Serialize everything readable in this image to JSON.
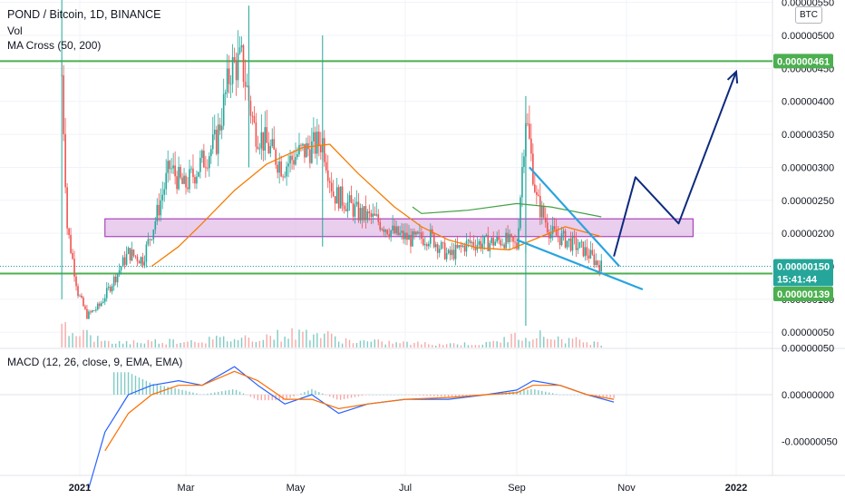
{
  "legend": {
    "symbol": "POND / Bitcoin, 1D, BINANCE",
    "vol": "Vol",
    "ma": "MA Cross (50, 200)",
    "macd": "MACD (12, 26, close, 9, EMA, EMA)"
  },
  "currency": "BTC",
  "price_axis": {
    "ticks": [
      "0.00000550",
      "0.00000500",
      "0.00000450",
      "0.00000400",
      "0.00000350",
      "0.00000300",
      "0.00000250",
      "0.00000200",
      "0.00000150",
      "0.00000100",
      "0.00000050"
    ],
    "tick_values": [
      550,
      500,
      450,
      400,
      350,
      300,
      250,
      200,
      150,
      100,
      50
    ]
  },
  "macd_axis": {
    "ticks": [
      "0.00000050",
      "0.00000000",
      "-0.00000050"
    ],
    "tick_values": [
      50,
      0,
      -50
    ]
  },
  "time_axis": {
    "labels": [
      "2021",
      "Mar",
      "May",
      "Jul",
      "Sep",
      "Nov",
      "2022"
    ],
    "bold": [
      true,
      false,
      false,
      false,
      false,
      false,
      true
    ]
  },
  "tags": {
    "resistance": "0.00000461",
    "last_price": "0.00000150",
    "countdown": "15:41:44",
    "support": "0.00000139"
  },
  "colors": {
    "up": "#26a69a",
    "down": "#ef5350",
    "level": "#4caf50",
    "ma50": "#f57c00",
    "ma200": "#43a047",
    "macd": "#2962ff",
    "signal": "#ff6d00",
    "wedge": "#29a3e0",
    "projection": "#0d2a7e",
    "zone_fill": "#e1bee7",
    "zone_border": "#9c27b0",
    "last": "#26a69a"
  },
  "chart_data": {
    "type": "line",
    "title": "POND / Bitcoin, 1D, BINANCE",
    "unit": "BTC (×1e-8)",
    "x_label_dates": [
      "2021",
      "Mar",
      "May",
      "Jul",
      "Sep",
      "Nov",
      "2022"
    ],
    "price": {
      "ylim": [
        0,
        560
      ],
      "close": [
        {
          "d": "2020-12-22",
          "v": 440
        },
        {
          "d": "2020-12-25",
          "v": 210
        },
        {
          "d": "2020-12-31",
          "v": 110
        },
        {
          "d": "2021-01-05",
          "v": 75
        },
        {
          "d": "2021-01-12",
          "v": 90
        },
        {
          "d": "2021-01-20",
          "v": 130
        },
        {
          "d": "2021-01-28",
          "v": 170
        },
        {
          "d": "2021-02-05",
          "v": 160
        },
        {
          "d": "2021-02-12",
          "v": 220
        },
        {
          "d": "2021-02-20",
          "v": 300
        },
        {
          "d": "2021-02-28",
          "v": 270
        },
        {
          "d": "2021-03-08",
          "v": 300
        },
        {
          "d": "2021-03-18",
          "v": 340
        },
        {
          "d": "2021-03-26",
          "v": 450
        },
        {
          "d": "2021-04-01",
          "v": 460
        },
        {
          "d": "2021-04-08",
          "v": 360
        },
        {
          "d": "2021-04-16",
          "v": 330
        },
        {
          "d": "2021-04-24",
          "v": 300
        },
        {
          "d": "2021-05-02",
          "v": 320
        },
        {
          "d": "2021-05-10",
          "v": 330
        },
        {
          "d": "2021-05-16",
          "v": 340
        },
        {
          "d": "2021-05-22",
          "v": 260
        },
        {
          "d": "2021-05-28",
          "v": 250
        },
        {
          "d": "2021-06-05",
          "v": 230
        },
        {
          "d": "2021-06-15",
          "v": 220
        },
        {
          "d": "2021-06-25",
          "v": 200
        },
        {
          "d": "2021-07-05",
          "v": 190
        },
        {
          "d": "2021-07-15",
          "v": 195
        },
        {
          "d": "2021-07-25",
          "v": 165
        },
        {
          "d": "2021-08-05",
          "v": 185
        },
        {
          "d": "2021-08-15",
          "v": 185
        },
        {
          "d": "2021-08-25",
          "v": 190
        },
        {
          "d": "2021-09-01",
          "v": 180
        },
        {
          "d": "2021-09-06",
          "v": 380
        },
        {
          "d": "2021-09-12",
          "v": 250
        },
        {
          "d": "2021-09-20",
          "v": 200
        },
        {
          "d": "2021-09-28",
          "v": 190
        },
        {
          "d": "2021-10-08",
          "v": 175
        },
        {
          "d": "2021-10-18",
          "v": 150
        }
      ],
      "ma50": [
        {
          "d": "2021-02-10",
          "v": 150
        },
        {
          "d": "2021-02-25",
          "v": 180
        },
        {
          "d": "2021-03-10",
          "v": 215
        },
        {
          "d": "2021-03-28",
          "v": 265
        },
        {
          "d": "2021-04-15",
          "v": 305
        },
        {
          "d": "2021-05-05",
          "v": 330
        },
        {
          "d": "2021-05-20",
          "v": 335
        },
        {
          "d": "2021-06-05",
          "v": 290
        },
        {
          "d": "2021-06-25",
          "v": 240
        },
        {
          "d": "2021-07-10",
          "v": 210
        },
        {
          "d": "2021-07-25",
          "v": 190
        },
        {
          "d": "2021-08-10",
          "v": 178
        },
        {
          "d": "2021-08-28",
          "v": 175
        },
        {
          "d": "2021-09-10",
          "v": 190
        },
        {
          "d": "2021-09-28",
          "v": 210
        },
        {
          "d": "2021-10-18",
          "v": 195
        }
      ],
      "ma200": [
        {
          "d": "2021-07-05",
          "v": 240
        },
        {
          "d": "2021-07-10",
          "v": 230
        },
        {
          "d": "2021-08-05",
          "v": 235
        },
        {
          "d": "2021-09-01",
          "v": 245
        },
        {
          "d": "2021-09-20",
          "v": 240
        },
        {
          "d": "2021-10-18",
          "v": 225
        }
      ],
      "levels": [
        461,
        139
      ],
      "zone": {
        "from": "2021-01-15",
        "to": "2021-12-08",
        "low": 195,
        "high": 222
      },
      "wedge_upper": [
        {
          "d": "2021-09-08",
          "v": 300
        },
        {
          "d": "2021-10-28",
          "v": 150
        }
      ],
      "wedge_lower": [
        {
          "d": "2021-09-01",
          "v": 190
        },
        {
          "d": "2021-11-10",
          "v": 115
        }
      ],
      "projection": [
        {
          "d": "2021-10-25",
          "v": 165
        },
        {
          "d": "2021-11-06",
          "v": 285
        },
        {
          "d": "2021-11-30",
          "v": 215
        },
        {
          "d": "2022-01-01",
          "v": 445
        }
      ],
      "last": 150
    },
    "volume": [
      {
        "d": "2020-12-22",
        "v": 100
      },
      {
        "d": "2021-01-15",
        "v": 20
      },
      {
        "d": "2021-02-15",
        "v": 25
      },
      {
        "d": "2021-03-28",
        "v": 35
      },
      {
        "d": "2021-05-10",
        "v": 60
      },
      {
        "d": "2021-06-01",
        "v": 25
      },
      {
        "d": "2021-07-15",
        "v": 15
      },
      {
        "d": "2021-08-15",
        "v": 15
      },
      {
        "d": "2021-09-06",
        "v": 55
      },
      {
        "d": "2021-10-18",
        "v": 15
      }
    ],
    "macd": {
      "ylim": [
        -100,
        60
      ],
      "macd_line": [
        {
          "d": "2021-01-06",
          "v": -100
        },
        {
          "d": "2021-01-15",
          "v": -40
        },
        {
          "d": "2021-01-28",
          "v": 0
        },
        {
          "d": "2021-02-10",
          "v": 10
        },
        {
          "d": "2021-02-25",
          "v": 15
        },
        {
          "d": "2021-03-10",
          "v": 10
        },
        {
          "d": "2021-03-28",
          "v": 30
        },
        {
          "d": "2021-04-10",
          "v": 10
        },
        {
          "d": "2021-04-25",
          "v": -10
        },
        {
          "d": "2021-05-10",
          "v": 0
        },
        {
          "d": "2021-05-25",
          "v": -20
        },
        {
          "d": "2021-06-10",
          "v": -10
        },
        {
          "d": "2021-07-01",
          "v": -5
        },
        {
          "d": "2021-07-25",
          "v": -5
        },
        {
          "d": "2021-08-15",
          "v": 0
        },
        {
          "d": "2021-09-01",
          "v": 5
        },
        {
          "d": "2021-09-10",
          "v": 15
        },
        {
          "d": "2021-09-25",
          "v": 10
        },
        {
          "d": "2021-10-10",
          "v": 0
        },
        {
          "d": "2021-10-25",
          "v": -8
        }
      ],
      "signal_line": [
        {
          "d": "2021-01-15",
          "v": -60
        },
        {
          "d": "2021-01-28",
          "v": -20
        },
        {
          "d": "2021-02-10",
          "v": 0
        },
        {
          "d": "2021-02-25",
          "v": 10
        },
        {
          "d": "2021-03-10",
          "v": 10
        },
        {
          "d": "2021-03-28",
          "v": 25
        },
        {
          "d": "2021-04-10",
          "v": 15
        },
        {
          "d": "2021-04-25",
          "v": -5
        },
        {
          "d": "2021-05-10",
          "v": -5
        },
        {
          "d": "2021-05-25",
          "v": -15
        },
        {
          "d": "2021-06-10",
          "v": -10
        },
        {
          "d": "2021-07-01",
          "v": -5
        },
        {
          "d": "2021-07-25",
          "v": -3
        },
        {
          "d": "2021-08-15",
          "v": 0
        },
        {
          "d": "2021-09-01",
          "v": 2
        },
        {
          "d": "2021-09-10",
          "v": 10
        },
        {
          "d": "2021-09-25",
          "v": 10
        },
        {
          "d": "2021-10-10",
          "v": 0
        },
        {
          "d": "2021-10-25",
          "v": -5
        }
      ]
    }
  }
}
